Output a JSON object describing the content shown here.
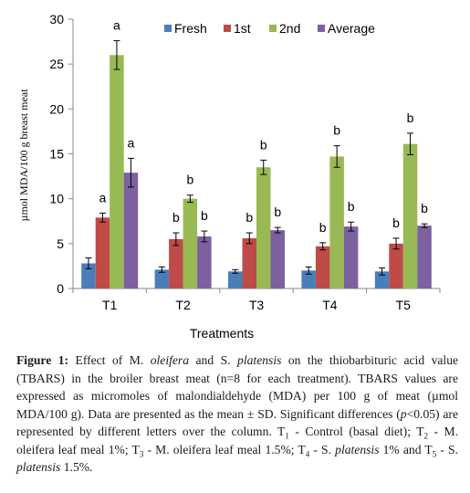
{
  "chart_data": {
    "type": "bar",
    "categories": [
      "T1",
      "T2",
      "T3",
      "T4",
      "T5"
    ],
    "series": [
      {
        "name": "Fresh",
        "color": "#4a7ebb",
        "values": [
          2.8,
          2.1,
          1.9,
          2.0,
          1.9
        ],
        "errors": [
          0.6,
          0.3,
          0.2,
          0.4,
          0.4
        ],
        "labels": [
          "",
          "",
          "",
          "",
          ""
        ]
      },
      {
        "name": "1st",
        "color": "#be4b48",
        "values": [
          7.9,
          5.5,
          5.6,
          4.7,
          5.0
        ],
        "errors": [
          0.5,
          0.7,
          0.6,
          0.4,
          0.6
        ],
        "labels": [
          "a",
          "b",
          "b",
          "b",
          "b"
        ]
      },
      {
        "name": "2nd",
        "color": "#98b954",
        "values": [
          26.0,
          10.0,
          13.5,
          14.7,
          16.1
        ],
        "errors": [
          1.6,
          0.4,
          0.8,
          1.2,
          1.2
        ],
        "labels": [
          "a",
          "b",
          "b",
          "b",
          "b"
        ]
      },
      {
        "name": "Average",
        "color": "#7d60a0",
        "values": [
          12.9,
          5.8,
          6.5,
          6.9,
          7.0
        ],
        "errors": [
          1.6,
          0.6,
          0.3,
          0.5,
          0.2
        ],
        "labels": [
          "a",
          "b",
          "b",
          "b",
          "b"
        ]
      }
    ],
    "xlabel": "Treatments",
    "ylabel": "µmol MDA/100 g breast meat",
    "ylim": [
      0,
      30
    ],
    "yticks": [
      0,
      5,
      10,
      15,
      20,
      25,
      30
    ],
    "legend": "top",
    "grid": false
  },
  "caption": {
    "label": "Figure 1:",
    "part1": " Effect of M. ",
    "species1_italic": "oleifera",
    "part2": " and S. ",
    "species2_italic": "platensis",
    "part3": " on the thiobarbituric acid value (TBARS) in the broiler breast meat (n=8 for each treatment). TBARS values are expressed as micromoles of malondialdehyde (MDA) per 100 g of meat (µmol MDA/100 g). Data are presented as the mean ± SD. Significant differences (",
    "p_italic": "p",
    "part4": "<0.05) are represented by different letters over the column. T",
    "sub1": "1",
    "part5": " - Control (basal diet); T",
    "sub2": "2",
    "part6": " - M. oleifera leaf meal 1%; T",
    "sub3": "3",
    "part7": " - M. oleifera leaf meal 1.5%; T",
    "sub4": "4",
    "part8": " - S. ",
    "species3_italic": "platensis",
    "part9": " 1% and T",
    "sub5": "5",
    "part10": " - S. ",
    "species4_italic": "platensis",
    "part11": " 1.5%."
  }
}
